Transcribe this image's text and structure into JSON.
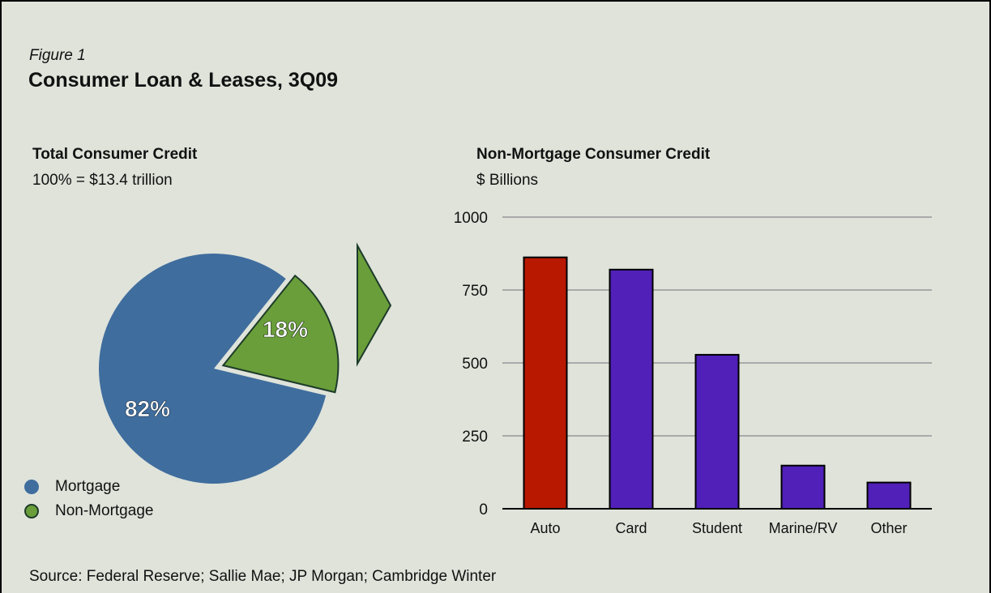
{
  "figure": {
    "label": "Figure 1",
    "title": "Consumer Loan & Leases, 3Q09"
  },
  "pie": {
    "title": "Total Consumer Credit",
    "subtitle": "100% = $13.4 trillion",
    "legend": [
      {
        "label": "Mortgage",
        "color": "#3f6d9e"
      },
      {
        "label": "Non-Mortgage",
        "color": "#6a9e3a"
      }
    ]
  },
  "bar": {
    "title": "Non-Mortgage Consumer Credit",
    "subtitle": "$ Billions"
  },
  "source": "Source:  Federal Reserve; Sallie Mae; JP Morgan; Cambridge Winter",
  "colors": {
    "mortgage": "#3f6d9e",
    "non_mortgage": "#6a9e3a",
    "non_mortgage_border": "#1d3b2a",
    "auto_bar": "#b81800",
    "other_bars": "#5020b8",
    "gridline": "#aaaaaa"
  },
  "chart_data": [
    {
      "type": "pie",
      "title": "Total Consumer Credit",
      "subtitle": "100% = $13.4 trillion",
      "slices": [
        {
          "label": "Mortgage",
          "value": 82,
          "display": "82%",
          "color": "#3f6d9e"
        },
        {
          "label": "Non-Mortgage",
          "value": 18,
          "display": "18%",
          "color": "#6a9e3a",
          "exploded": true
        }
      ],
      "legend_position": "bottom-left"
    },
    {
      "type": "bar",
      "title": "Non-Mortgage Consumer Credit",
      "ylabel": "$ Billions",
      "categories": [
        "Auto",
        "Card",
        "Student",
        "Marine/RV",
        "Other"
      ],
      "values": [
        862,
        820,
        528,
        148,
        90
      ],
      "colors": [
        "#b81800",
        "#5020b8",
        "#5020b8",
        "#5020b8",
        "#5020b8"
      ],
      "ylim": [
        0,
        1000
      ],
      "yticks": [
        0,
        250,
        500,
        750,
        1000
      ],
      "ytick_labels": [
        "0",
        "250",
        "500",
        "750",
        "1000"
      ],
      "grid": true
    }
  ]
}
